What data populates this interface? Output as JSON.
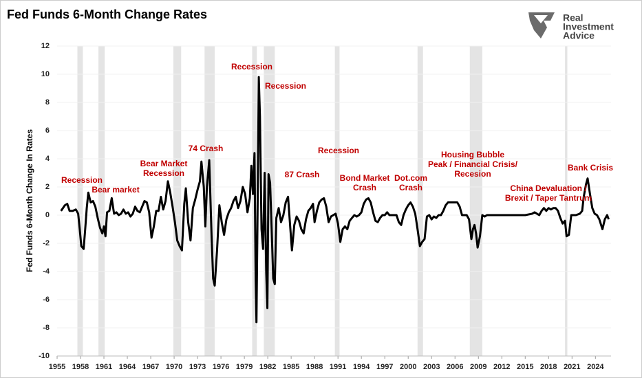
{
  "chart_data": {
    "type": "line",
    "title": "Fed Funds 6-Month Change Rates",
    "y_label": "Fed Funds 6-Month Change In Rates",
    "logo": [
      "Real",
      "Investment",
      "Advice"
    ],
    "color": "#000000",
    "shade_color": "#e4e4e4",
    "annotation_color": "#c00000",
    "grid": true,
    "xlim": [
      1955,
      2026
    ],
    "xticks": [
      1955,
      1958,
      1961,
      1964,
      1967,
      1970,
      1973,
      1976,
      1979,
      1982,
      1985,
      1988,
      1991,
      1994,
      1997,
      2000,
      2003,
      2006,
      2009,
      2012,
      2015,
      2018,
      2021,
      2024
    ],
    "ylim": [
      -10,
      12
    ],
    "yticks": [
      -10,
      -8,
      -6,
      -4,
      -2,
      0,
      2,
      4,
      6,
      8,
      10,
      12
    ],
    "shaded_periods": [
      [
        1957.6,
        1958.3
      ],
      [
        1960.3,
        1961.1
      ],
      [
        1969.9,
        1970.9
      ],
      [
        1973.9,
        1975.2
      ],
      [
        1980.0,
        1980.6
      ],
      [
        1981.5,
        1982.9
      ],
      [
        1990.6,
        1991.2
      ],
      [
        2001.2,
        2001.9
      ],
      [
        2007.9,
        2009.5
      ],
      [
        2020.1,
        2020.4
      ]
    ],
    "annotations": [
      [
        "Recession"
      ],
      [
        "Bear market"
      ],
      [
        "Bear Market",
        "Recession"
      ],
      [
        "74 Crash"
      ],
      [
        "Recession"
      ],
      [
        "Recession"
      ],
      [
        "87 Crash"
      ],
      [
        "Recession"
      ],
      [
        "Bond Market",
        "Crash"
      ],
      [
        "Dot.com",
        "Crash"
      ],
      [
        "Housing Bubble",
        "Peak / Financial Crisis/",
        "Recesion"
      ],
      [
        "China Devaluation /",
        "Brexit / Taper Tantrum"
      ],
      [
        "Bank Crisis"
      ]
    ],
    "x": [
      1955.5,
      1956.0,
      1956.3,
      1956.6,
      1957.0,
      1957.4,
      1957.7,
      1957.9,
      1958.1,
      1958.4,
      1958.6,
      1958.8,
      1959.0,
      1959.3,
      1959.6,
      1959.9,
      1960.2,
      1960.5,
      1960.8,
      1961.0,
      1961.2,
      1961.4,
      1961.7,
      1962.0,
      1962.3,
      1962.6,
      1962.9,
      1963.2,
      1963.5,
      1963.8,
      1964.1,
      1964.4,
      1964.7,
      1965.0,
      1965.3,
      1965.6,
      1965.9,
      1966.2,
      1966.5,
      1966.8,
      1967.1,
      1967.4,
      1967.7,
      1968.0,
      1968.3,
      1968.6,
      1968.9,
      1969.2,
      1969.5,
      1969.8,
      1970.1,
      1970.4,
      1970.7,
      1971.0,
      1971.3,
      1971.5,
      1971.8,
      1972.1,
      1972.4,
      1972.7,
      1973.0,
      1973.3,
      1973.5,
      1973.8,
      1974.0,
      1974.2,
      1974.5,
      1974.8,
      1975.0,
      1975.2,
      1975.5,
      1975.8,
      1976.1,
      1976.4,
      1976.7,
      1977.0,
      1977.3,
      1977.6,
      1977.9,
      1978.2,
      1978.5,
      1978.8,
      1979.1,
      1979.4,
      1979.7,
      1979.9,
      1980.1,
      1980.3,
      1980.45,
      1980.55,
      1980.7,
      1980.85,
      1981.0,
      1981.2,
      1981.4,
      1981.6,
      1981.8,
      1981.95,
      1982.1,
      1982.3,
      1982.5,
      1982.7,
      1982.9,
      1983.1,
      1983.4,
      1983.7,
      1984.0,
      1984.3,
      1984.6,
      1984.9,
      1985.1,
      1985.4,
      1985.7,
      1986.0,
      1986.3,
      1986.6,
      1986.9,
      1987.2,
      1987.5,
      1987.8,
      1988.0,
      1988.3,
      1988.6,
      1988.9,
      1989.2,
      1989.5,
      1989.8,
      1990.1,
      1990.4,
      1990.7,
      1991.0,
      1991.3,
      1991.6,
      1991.9,
      1992.2,
      1992.5,
      1992.8,
      1993.1,
      1993.4,
      1993.7,
      1994.0,
      1994.3,
      1994.6,
      1994.9,
      1995.2,
      1995.5,
      1995.8,
      1996.1,
      1996.4,
      1996.7,
      1997.0,
      1997.3,
      1997.6,
      1997.9,
      1998.2,
      1998.5,
      1998.8,
      1999.1,
      1999.4,
      1999.7,
      2000.0,
      2000.3,
      2000.6,
      2000.9,
      2001.2,
      2001.5,
      2001.8,
      2002.1,
      2002.4,
      2002.7,
      2003.0,
      2003.3,
      2003.6,
      2003.9,
      2004.2,
      2004.5,
      2004.8,
      2005.1,
      2005.4,
      2005.7,
      2006.0,
      2006.3,
      2006.6,
      2006.9,
      2007.2,
      2007.5,
      2007.8,
      2008.1,
      2008.3,
      2008.5,
      2008.7,
      2008.9,
      2009.2,
      2009.5,
      2009.8,
      2010.1,
      2011.0,
      2012.0,
      2013.0,
      2014.0,
      2015.0,
      2015.9,
      2016.2,
      2016.5,
      2016.8,
      2017.1,
      2017.4,
      2017.7,
      2018.0,
      2018.3,
      2018.6,
      2018.9,
      2019.2,
      2019.5,
      2019.8,
      2020.1,
      2020.3,
      2020.6,
      2020.9,
      2021.5,
      2022.0,
      2022.3,
      2022.5,
      2022.8,
      2023.0,
      2023.3,
      2023.6,
      2023.9,
      2024.2,
      2024.5,
      2024.9,
      2025.2,
      2025.5,
      2025.7
    ],
    "values": [
      0.3,
      0.7,
      0.8,
      0.3,
      0.3,
      0.4,
      0.1,
      -1.0,
      -2.2,
      -2.4,
      -1.0,
      0.5,
      1.6,
      0.9,
      1.0,
      0.6,
      -0.2,
      -0.9,
      -1.3,
      -0.8,
      -1.5,
      0.2,
      0.3,
      1.2,
      0.1,
      0.2,
      0.0,
      0.1,
      0.4,
      0.1,
      0.2,
      -0.1,
      0.1,
      0.6,
      0.3,
      0.2,
      0.6,
      1.0,
      0.9,
      0.2,
      -1.6,
      -0.8,
      0.3,
      0.3,
      1.3,
      0.4,
      1.0,
      2.4,
      1.6,
      0.6,
      -0.5,
      -1.8,
      -2.2,
      -2.5,
      0.8,
      1.9,
      -0.5,
      -1.8,
      0.5,
      1.1,
      1.8,
      2.4,
      3.8,
      2.0,
      -0.8,
      2.0,
      3.9,
      -1.5,
      -4.5,
      -5.0,
      -2.5,
      0.7,
      -0.5,
      -1.4,
      -0.3,
      0.2,
      0.5,
      1.0,
      1.3,
      0.5,
      1.0,
      2.0,
      1.5,
      0.2,
      1.2,
      3.5,
      1.5,
      4.4,
      -4.5,
      -7.6,
      0.5,
      9.8,
      7.0,
      -1.0,
      -2.4,
      3.0,
      -4.0,
      -6.6,
      2.9,
      2.3,
      -1.0,
      -4.5,
      -4.9,
      -0.2,
      0.5,
      -0.5,
      0.0,
      0.9,
      1.3,
      -1.0,
      -2.5,
      -0.7,
      -0.1,
      -0.4,
      -1.0,
      -1.3,
      -0.3,
      0.3,
      0.5,
      0.8,
      -0.5,
      0.3,
      0.9,
      1.1,
      1.2,
      0.6,
      -0.5,
      -0.1,
      0.0,
      0.1,
      -0.6,
      -1.9,
      -1.0,
      -0.8,
      -1.0,
      -0.4,
      -0.2,
      0.0,
      -0.1,
      0.0,
      0.2,
      0.8,
      1.1,
      1.2,
      0.9,
      0.2,
      -0.4,
      -0.5,
      -0.2,
      0.0,
      0.0,
      0.2,
      0.0,
      0.0,
      0.0,
      0.0,
      -0.5,
      -0.7,
      0.0,
      0.4,
      0.7,
      0.9,
      0.6,
      0.1,
      -1.0,
      -2.2,
      -1.9,
      -1.7,
      -0.1,
      0.0,
      -0.3,
      -0.1,
      -0.2,
      0.0,
      0.0,
      0.3,
      0.7,
      0.9,
      0.9,
      0.9,
      0.9,
      0.9,
      0.6,
      0.0,
      0.0,
      0.0,
      -0.3,
      -1.7,
      -1.0,
      -0.7,
      -1.3,
      -2.3,
      -1.5,
      0.0,
      -0.1,
      0.0,
      0.0,
      0.0,
      0.0,
      0.0,
      0.0,
      0.1,
      0.2,
      0.1,
      0.0,
      0.3,
      0.5,
      0.3,
      0.5,
      0.4,
      0.5,
      0.5,
      0.3,
      -0.2,
      -0.6,
      -0.4,
      -1.5,
      -1.4,
      0.0,
      0.0,
      0.1,
      0.3,
      1.3,
      2.2,
      2.6,
      1.5,
      0.5,
      0.1,
      0.0,
      -0.3,
      -1.0,
      -0.3,
      0.0,
      -0.3
    ]
  }
}
